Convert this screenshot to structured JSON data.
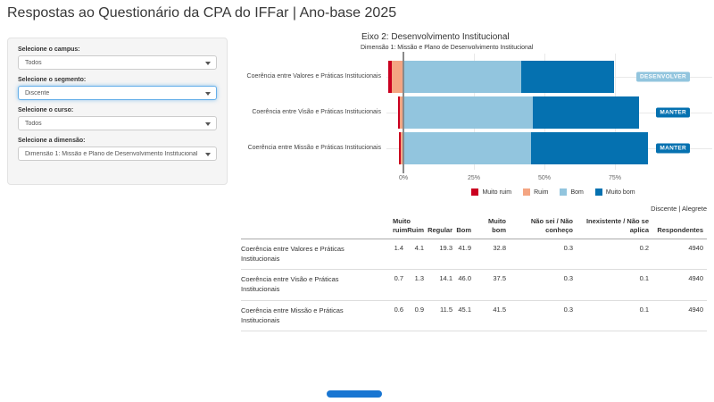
{
  "page_title": "Respostas ao Questionário da CPA do IFFar | Ano-base 2025",
  "filters": [
    {
      "label": "Selecione o campus:",
      "value": "Todos",
      "focused": false
    },
    {
      "label": "Selecione o segmento:",
      "value": "Discente",
      "focused": true
    },
    {
      "label": "Selecione o curso:",
      "value": "Todos",
      "focused": false
    },
    {
      "label": "Selecione a dimensão:",
      "value": "Dimensão 1: Missão e Plano de Desenvolvimento Institucional",
      "focused": false
    }
  ],
  "chart_data": {
    "type": "bar",
    "orientation": "horizontal_diverging_stacked",
    "title": "Eixo 2: Desenvolvimento Institucional",
    "subtitle": "Dimensão 1: Missão e Plano de Desenvolvimento Institucional",
    "categories": [
      "Coerência entre Valores e Práticas Institucionais",
      "Coerência entre Visão e Práticas Institucionais",
      "Coerência entre Missão e Práticas Institucionais"
    ],
    "series": [
      {
        "name": "Muito ruim",
        "color": "#ca0020",
        "side": "negative",
        "values": [
          1.4,
          0.7,
          0.6
        ]
      },
      {
        "name": "Ruim",
        "color": "#f4a582",
        "side": "negative",
        "values": [
          4.1,
          1.3,
          0.9
        ]
      },
      {
        "name": "Bom",
        "color": "#92c5de",
        "side": "positive",
        "values": [
          41.9,
          46.0,
          45.1
        ]
      },
      {
        "name": "Muito bom",
        "color": "#0571b0",
        "side": "positive",
        "values": [
          32.8,
          37.5,
          41.5
        ]
      }
    ],
    "badges": [
      {
        "label": "DESENVOLVER",
        "color": "#92c5de"
      },
      {
        "label": "MANTER",
        "color": "#0571b0"
      },
      {
        "label": "MANTER",
        "color": "#0571b0"
      }
    ],
    "x_ticks": [
      {
        "label": "0%",
        "value": 0
      },
      {
        "label": "25%",
        "value": 25
      },
      {
        "label": "50%",
        "value": 50
      },
      {
        "label": "75%",
        "value": 75
      }
    ],
    "xlabel": "",
    "ylabel": "",
    "legend_position": "bottom",
    "grid": true
  },
  "context_label": "Discente | Alegrete",
  "table": {
    "columns": [
      {
        "label": "",
        "lines": [
          "",
          ""
        ]
      },
      {
        "label": "Muito ruim",
        "lines": [
          "Muito",
          "ruim"
        ]
      },
      {
        "label": "Ruim",
        "lines": [
          "",
          "Ruim"
        ]
      },
      {
        "label": "Regular",
        "lines": [
          "",
          "Regular"
        ]
      },
      {
        "label": "Bom",
        "lines": [
          "",
          "Bom"
        ]
      },
      {
        "label": "Muito bom",
        "lines": [
          "Muito",
          "bom"
        ]
      },
      {
        "label": "Não sei / Não conheço",
        "lines": [
          "Não sei / Não",
          "conheço"
        ]
      },
      {
        "label": "Inexistente / Não se aplica",
        "lines": [
          "Inexistente / Não se",
          "aplica"
        ]
      },
      {
        "label": "Respondentes",
        "lines": [
          "",
          "Respondentes"
        ]
      }
    ],
    "rows": [
      {
        "label": "Coerência entre Valores e Práticas Institucionais",
        "values": [
          "1.4",
          "4.1",
          "19.3",
          "41.9",
          "32.8",
          "0.3",
          "0.2",
          "4940"
        ]
      },
      {
        "label": "Coerência entre Visão e Práticas Institucionais",
        "values": [
          "0.7",
          "1.3",
          "14.1",
          "46.0",
          "37.5",
          "0.3",
          "0.1",
          "4940"
        ]
      },
      {
        "label": "Coerência entre Missão e Práticas Institucionais",
        "values": [
          "0.6",
          "0.9",
          "11.5",
          "45.1",
          "41.5",
          "0.3",
          "0.1",
          "4940"
        ]
      }
    ]
  }
}
